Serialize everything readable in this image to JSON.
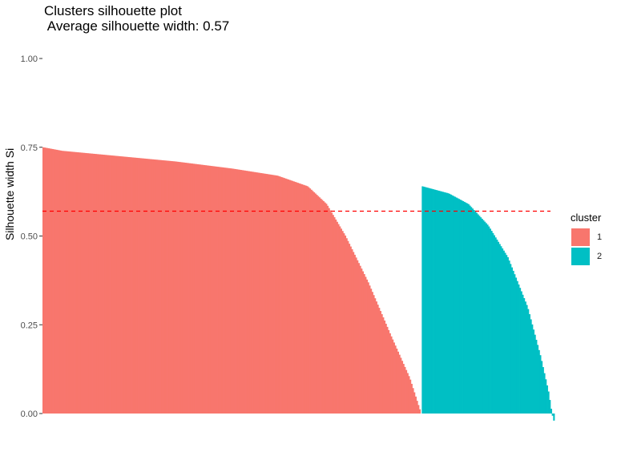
{
  "chart_data": {
    "type": "area",
    "title": "Clusters silhouette plot\n Average silhouette width: 0.57",
    "xlabel": "",
    "ylabel": "Silhouette width Si",
    "ylim": [
      0,
      1
    ],
    "yticks": [
      "0.00",
      "0.25",
      "0.50",
      "0.75",
      "1.00"
    ],
    "ytick_values": [
      0,
      0.25,
      0.5,
      0.75,
      1.0
    ],
    "grid": false,
    "legend_position": "right",
    "legend_title": "cluster",
    "average_silhouette": 0.57,
    "series": [
      {
        "name": "1",
        "color": "#F8766D",
        "n": 280,
        "profile": [
          [
            0,
            0.75
          ],
          [
            0.05,
            0.74
          ],
          [
            0.2,
            0.725
          ],
          [
            0.35,
            0.71
          ],
          [
            0.5,
            0.69
          ],
          [
            0.62,
            0.67
          ],
          [
            0.7,
            0.64
          ],
          [
            0.75,
            0.59
          ],
          [
            0.8,
            0.5
          ],
          [
            0.86,
            0.37
          ],
          [
            0.92,
            0.22
          ],
          [
            0.97,
            0.1
          ],
          [
            1.0,
            0.0
          ]
        ]
      },
      {
        "name": "2",
        "color": "#00BFC4",
        "n": 98,
        "profile": [
          [
            0,
            0.64
          ],
          [
            0.2,
            0.62
          ],
          [
            0.35,
            0.59
          ],
          [
            0.5,
            0.53
          ],
          [
            0.65,
            0.44
          ],
          [
            0.8,
            0.3
          ],
          [
            0.9,
            0.16
          ],
          [
            0.96,
            0.06
          ],
          [
            0.985,
            0.0
          ],
          [
            1.0,
            -0.02
          ]
        ]
      }
    ]
  },
  "legend_items": [
    {
      "label": "1",
      "color": "#F8766D"
    },
    {
      "label": "2",
      "color": "#00BFC4"
    }
  ]
}
